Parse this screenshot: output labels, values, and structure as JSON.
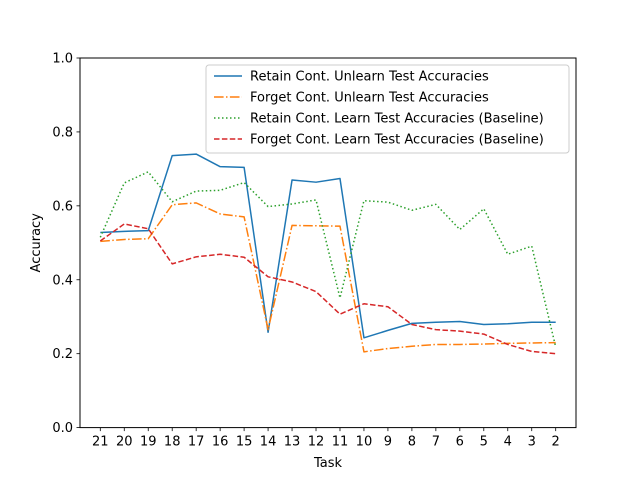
{
  "chart_data": {
    "type": "line",
    "title": "",
    "xlabel": "Task",
    "ylabel": "Accuracy",
    "x": [
      "21",
      "20",
      "19",
      "18",
      "17",
      "16",
      "15",
      "14",
      "13",
      "12",
      "11",
      "10",
      "9",
      "8",
      "7",
      "6",
      "5",
      "4",
      "3",
      "2"
    ],
    "ylim": [
      0.0,
      1.0
    ],
    "yticks": [
      "0.0",
      "0.2",
      "0.4",
      "0.6",
      "0.8",
      "1.0"
    ],
    "grid": false,
    "legend_position": "top-right",
    "series": [
      {
        "name": "Retain Cont. Unlearn Test Accuracies",
        "color": "#1f77b4",
        "style": "solid",
        "values": [
          0.528,
          0.531,
          0.533,
          0.736,
          0.74,
          0.706,
          0.704,
          0.258,
          0.67,
          0.664,
          0.674,
          0.243,
          0.263,
          0.282,
          0.285,
          0.287,
          0.279,
          0.281,
          0.285,
          0.285
        ]
      },
      {
        "name": "Forget Cont. Unlearn Test Accuracies",
        "color": "#ff7f0e",
        "style": "dashdot",
        "values": [
          0.504,
          0.509,
          0.511,
          0.603,
          0.608,
          0.578,
          0.57,
          0.265,
          0.547,
          0.546,
          0.545,
          0.205,
          0.214,
          0.22,
          0.225,
          0.225,
          0.226,
          0.228,
          0.229,
          0.23
        ]
      },
      {
        "name": "Retain Cont. Learn Test Accuracies (Baseline)",
        "color": "#2ca02c",
        "style": "dotted",
        "values": [
          0.515,
          0.662,
          0.692,
          0.611,
          0.64,
          0.642,
          0.663,
          0.598,
          0.605,
          0.616,
          0.351,
          0.614,
          0.61,
          0.588,
          0.604,
          0.536,
          0.592,
          0.469,
          0.491,
          0.218
        ]
      },
      {
        "name": "Forget Cont. Learn Test Accuracies (Baseline)",
        "color": "#d62728",
        "style": "dashed",
        "values": [
          0.505,
          0.551,
          0.538,
          0.443,
          0.462,
          0.469,
          0.461,
          0.408,
          0.394,
          0.368,
          0.307,
          0.335,
          0.327,
          0.279,
          0.265,
          0.261,
          0.253,
          0.225,
          0.206,
          0.2
        ]
      }
    ]
  }
}
